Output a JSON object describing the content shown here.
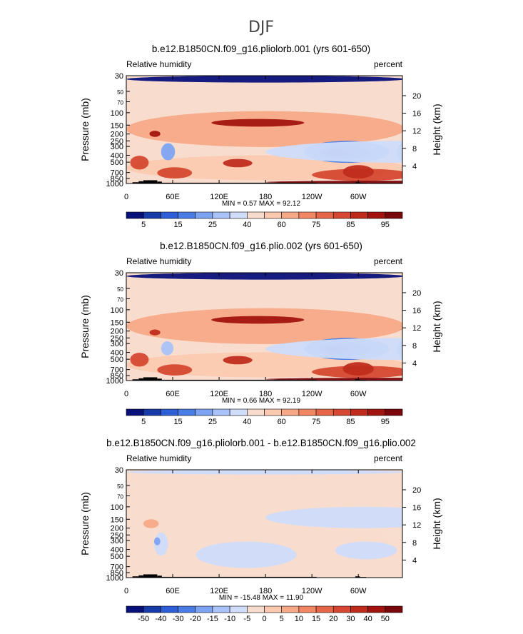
{
  "figure": {
    "season": "DJF"
  },
  "chart_data": [
    {
      "type": "heatmap",
      "title": "b.e12.B1850CN.f09_g16.pliolorb.001 (yrs 601-650)",
      "left_label": "Relative humidity",
      "right_label": "percent",
      "ylabel": "Pressure (mb)",
      "y2label": "Height (km)",
      "x_ticks": [
        "0",
        "60E",
        "120E",
        "180",
        "120W",
        "60W"
      ],
      "x_tick_values": [
        0,
        60,
        120,
        180,
        240,
        300
      ],
      "xlim": [
        0,
        357
      ],
      "p_ticks": [
        "30",
        "50",
        "70",
        "100",
        "150",
        "200",
        "250",
        "300",
        "400",
        "500",
        "700",
        "850",
        "1000"
      ],
      "p_tick_values": [
        30,
        50,
        70,
        100,
        150,
        200,
        250,
        300,
        400,
        500,
        700,
        850,
        1000
      ],
      "ylim": [
        30,
        1000
      ],
      "z_ticks": [
        "20",
        "16",
        "12",
        "8",
        "4"
      ],
      "z_tick_values": [
        20,
        16,
        12,
        8,
        4
      ],
      "stats": "MIN =    0.57  MAX =   92.12",
      "min": 0.57,
      "max": 92.12,
      "colorbar_labels": [
        "5",
        "15",
        "25",
        "40",
        "60",
        "75",
        "85",
        "95"
      ],
      "colorbar_levels": [
        5,
        10,
        15,
        20,
        25,
        30,
        40,
        50,
        60,
        65,
        70,
        75,
        80,
        85,
        90,
        95
      ],
      "colors": [
        "#08107a",
        "#173ba8",
        "#2d5fd6",
        "#4a7ee6",
        "#7ea3f2",
        "#a9c2f7",
        "#cfdcfa",
        "#f8ddcf",
        "#fbc9b0",
        "#f7a987",
        "#f28764",
        "#e76649",
        "#d64832",
        "#c02c1c",
        "#a2150f",
        "#7a050a"
      ],
      "fields": [
        {
          "lon": 0,
          "p": 30,
          "dx": 360,
          "dp": 15,
          "v": 2
        },
        {
          "lon": 0,
          "p": 200,
          "dx": 360,
          "dp": 210,
          "v": 28
        },
        {
          "lon": 0,
          "p": 650,
          "dx": 360,
          "dp": 500,
          "v": 40
        },
        {
          "lon": 30,
          "p": 200,
          "dx": 14,
          "dp": 40,
          "v": 85
        },
        {
          "lon": 110,
          "p": 140,
          "dx": 120,
          "dp": 35,
          "v": 86
        },
        {
          "lon": 125,
          "p": 520,
          "dx": 38,
          "dp": 140,
          "v": 80
        },
        {
          "lon": 5,
          "p": 520,
          "dx": 24,
          "dp": 230,
          "v": 76
        },
        {
          "lon": 40,
          "p": 720,
          "dx": 45,
          "dp": 260,
          "v": 76
        },
        {
          "lon": 240,
          "p": 770,
          "dx": 130,
          "dp": 300,
          "v": 78
        },
        {
          "lon": 280,
          "p": 700,
          "dx": 40,
          "dp": 300,
          "v": 80
        },
        {
          "lon": 180,
          "p": 960,
          "dx": 360,
          "dp": 90,
          "v": 92
        },
        {
          "lon": 230,
          "p": 380,
          "dx": 110,
          "dp": 260,
          "v": -28
        },
        {
          "lon": 250,
          "p": 375,
          "dx": 65,
          "dp": 160,
          "v": -16
        },
        {
          "lon": 258,
          "p": 370,
          "dx": 30,
          "dp": 90,
          "v": -6
        },
        {
          "lon": 45,
          "p": 370,
          "dx": 18,
          "dp": 200,
          "v": -20
        },
        {
          "lon": 350,
          "p": 380,
          "dx": 26,
          "dp": 240,
          "v": -26
        },
        {
          "lon": 180,
          "p": 380,
          "dx": 360,
          "dp": 260,
          "v": -8
        }
      ],
      "terrain": [
        {
          "lon": 8,
          "dx": 8,
          "p": 960
        },
        {
          "lon": 16,
          "dx": 6,
          "p": 930
        },
        {
          "lon": 22,
          "dx": 18,
          "p": 900
        },
        {
          "lon": 40,
          "dx": 6,
          "p": 940
        },
        {
          "lon": 46,
          "dx": 200,
          "p": 975
        },
        {
          "lon": 296,
          "dx": 6,
          "p": 960
        },
        {
          "lon": 302,
          "dx": 8,
          "p": 980
        }
      ]
    },
    {
      "type": "heatmap",
      "title": "b.e12.B1850CN.f09_g16.plio.002 (yrs 601-650)",
      "left_label": "Relative humidity",
      "right_label": "percent",
      "ylabel": "Pressure (mb)",
      "y2label": "Height (km)",
      "x_ticks": [
        "0",
        "60E",
        "120E",
        "180",
        "120W",
        "60W"
      ],
      "x_tick_values": [
        0,
        60,
        120,
        180,
        240,
        300
      ],
      "xlim": [
        0,
        357
      ],
      "p_ticks": [
        "30",
        "50",
        "70",
        "100",
        "150",
        "200",
        "250",
        "300",
        "400",
        "500",
        "700",
        "850",
        "1000"
      ],
      "p_tick_values": [
        30,
        50,
        70,
        100,
        150,
        200,
        250,
        300,
        400,
        500,
        700,
        850,
        1000
      ],
      "ylim": [
        30,
        1000
      ],
      "z_ticks": [
        "20",
        "16",
        "12",
        "8",
        "4"
      ],
      "z_tick_values": [
        20,
        16,
        12,
        8,
        4
      ],
      "stats": "MIN =    0.66  MAX =   92.19",
      "min": 0.66,
      "max": 92.19,
      "colorbar_labels": [
        "5",
        "15",
        "25",
        "40",
        "60",
        "75",
        "85",
        "95"
      ],
      "colorbar_levels": [
        5,
        10,
        15,
        20,
        25,
        30,
        40,
        50,
        60,
        65,
        70,
        75,
        80,
        85,
        90,
        95
      ],
      "colors": [
        "#08107a",
        "#173ba8",
        "#2d5fd6",
        "#4a7ee6",
        "#7ea3f2",
        "#a9c2f7",
        "#cfdcfa",
        "#f8ddcf",
        "#fbc9b0",
        "#f7a987",
        "#f28764",
        "#e76649",
        "#d64832",
        "#c02c1c",
        "#a2150f",
        "#7a050a"
      ],
      "fields": [
        {
          "lon": 0,
          "p": 30,
          "dx": 360,
          "dp": 15,
          "v": 2
        },
        {
          "lon": 0,
          "p": 200,
          "dx": 360,
          "dp": 210,
          "v": 28
        },
        {
          "lon": 0,
          "p": 650,
          "dx": 360,
          "dp": 500,
          "v": 40
        },
        {
          "lon": 30,
          "p": 210,
          "dx": 14,
          "dp": 40,
          "v": 84
        },
        {
          "lon": 110,
          "p": 140,
          "dx": 120,
          "dp": 35,
          "v": 86
        },
        {
          "lon": 125,
          "p": 520,
          "dx": 38,
          "dp": 140,
          "v": 80
        },
        {
          "lon": 5,
          "p": 520,
          "dx": 24,
          "dp": 230,
          "v": 76
        },
        {
          "lon": 40,
          "p": 720,
          "dx": 45,
          "dp": 260,
          "v": 76
        },
        {
          "lon": 240,
          "p": 770,
          "dx": 130,
          "dp": 300,
          "v": 78
        },
        {
          "lon": 280,
          "p": 700,
          "dx": 40,
          "dp": 300,
          "v": 80
        },
        {
          "lon": 180,
          "p": 960,
          "dx": 360,
          "dp": 90,
          "v": 92
        },
        {
          "lon": 230,
          "p": 380,
          "dx": 110,
          "dp": 260,
          "v": -28
        },
        {
          "lon": 250,
          "p": 375,
          "dx": 65,
          "dp": 160,
          "v": -16
        },
        {
          "lon": 258,
          "p": 370,
          "dx": 30,
          "dp": 90,
          "v": -6
        },
        {
          "lon": 45,
          "p": 360,
          "dx": 16,
          "dp": 160,
          "v": -14
        },
        {
          "lon": 350,
          "p": 380,
          "dx": 26,
          "dp": 240,
          "v": -26
        },
        {
          "lon": 180,
          "p": 380,
          "dx": 360,
          "dp": 260,
          "v": -8
        }
      ],
      "terrain": [
        {
          "lon": 8,
          "dx": 8,
          "p": 960
        },
        {
          "lon": 16,
          "dx": 6,
          "p": 930
        },
        {
          "lon": 22,
          "dx": 18,
          "p": 900
        },
        {
          "lon": 40,
          "dx": 6,
          "p": 940
        },
        {
          "lon": 46,
          "dx": 200,
          "p": 975
        },
        {
          "lon": 296,
          "dx": 6,
          "p": 960
        },
        {
          "lon": 302,
          "dx": 8,
          "p": 980
        }
      ]
    },
    {
      "type": "heatmap",
      "title": "b.e12.B1850CN.f09_g16.pliolorb.001 - b.e12.B1850CN.f09_g16.plio.002",
      "left_label": "Relative humidity",
      "right_label": "percent",
      "ylabel": "Pressure (mb)",
      "y2label": "Height (km)",
      "x_ticks": [
        "0",
        "60E",
        "120E",
        "180",
        "120W",
        "60W"
      ],
      "x_tick_values": [
        0,
        60,
        120,
        180,
        240,
        300
      ],
      "xlim": [
        0,
        357
      ],
      "p_ticks": [
        "30",
        "50",
        "70",
        "100",
        "150",
        "200",
        "250",
        "300",
        "400",
        "500",
        "700",
        "850",
        "1000"
      ],
      "p_tick_values": [
        30,
        50,
        70,
        100,
        150,
        200,
        250,
        300,
        400,
        500,
        700,
        850,
        1000
      ],
      "ylim": [
        30,
        1000
      ],
      "z_ticks": [
        "20",
        "16",
        "12",
        "8",
        "4"
      ],
      "z_tick_values": [
        20,
        16,
        12,
        8,
        4
      ],
      "stats": "MIN =  -15.48  MAX =   11.90",
      "min": -15.48,
      "max": 11.9,
      "colorbar_labels": [
        "-50",
        "-40",
        "-30",
        "-20",
        "-15",
        "-10",
        "-5",
        "0",
        "5",
        "10",
        "15",
        "20",
        "30",
        "40",
        "50"
      ],
      "colorbar_levels": [
        -50,
        -40,
        -30,
        -20,
        -15,
        -10,
        -5,
        0,
        5,
        10,
        15,
        20,
        30,
        40,
        50
      ],
      "colors": [
        "#08107a",
        "#173ba8",
        "#2d5fd6",
        "#4a7ee6",
        "#7ea3f2",
        "#a9c2f7",
        "#cfdcfa",
        "#f8ddcf",
        "#fbc9b0",
        "#f7a987",
        "#f28764",
        "#e76649",
        "#d64832",
        "#c02c1c",
        "#a2150f",
        "#7a050a"
      ],
      "fields": [
        {
          "lon": 0,
          "p": 30,
          "dx": 360,
          "dp": 10,
          "v": 0
        },
        {
          "lon": 90,
          "p": 520,
          "dx": 130,
          "dp": 420,
          "v": 2
        },
        {
          "lon": 270,
          "p": 430,
          "dx": 80,
          "dp": 240,
          "v": 2
        },
        {
          "lon": 180,
          "p": 150,
          "dx": 250,
          "dp": 100,
          "v": 2
        },
        {
          "lon": 22,
          "p": 175,
          "dx": 20,
          "dp": 50,
          "v": 8
        },
        {
          "lon": 36,
          "p": 360,
          "dx": 18,
          "dp": 260,
          "v": -8
        },
        {
          "lon": 36,
          "p": 310,
          "dx": 8,
          "dp": 80,
          "v": -18
        },
        {
          "lon": 330,
          "p": 260,
          "dx": 30,
          "dp": 100,
          "v": -3
        }
      ],
      "terrain": [
        {
          "lon": 8,
          "dx": 8,
          "p": 960
        },
        {
          "lon": 16,
          "dx": 6,
          "p": 930
        },
        {
          "lon": 22,
          "dx": 18,
          "p": 900
        },
        {
          "lon": 40,
          "dx": 6,
          "p": 940
        },
        {
          "lon": 46,
          "dx": 200,
          "p": 975
        },
        {
          "lon": 296,
          "dx": 6,
          "p": 960
        },
        {
          "lon": 302,
          "dx": 8,
          "p": 980
        }
      ]
    }
  ]
}
